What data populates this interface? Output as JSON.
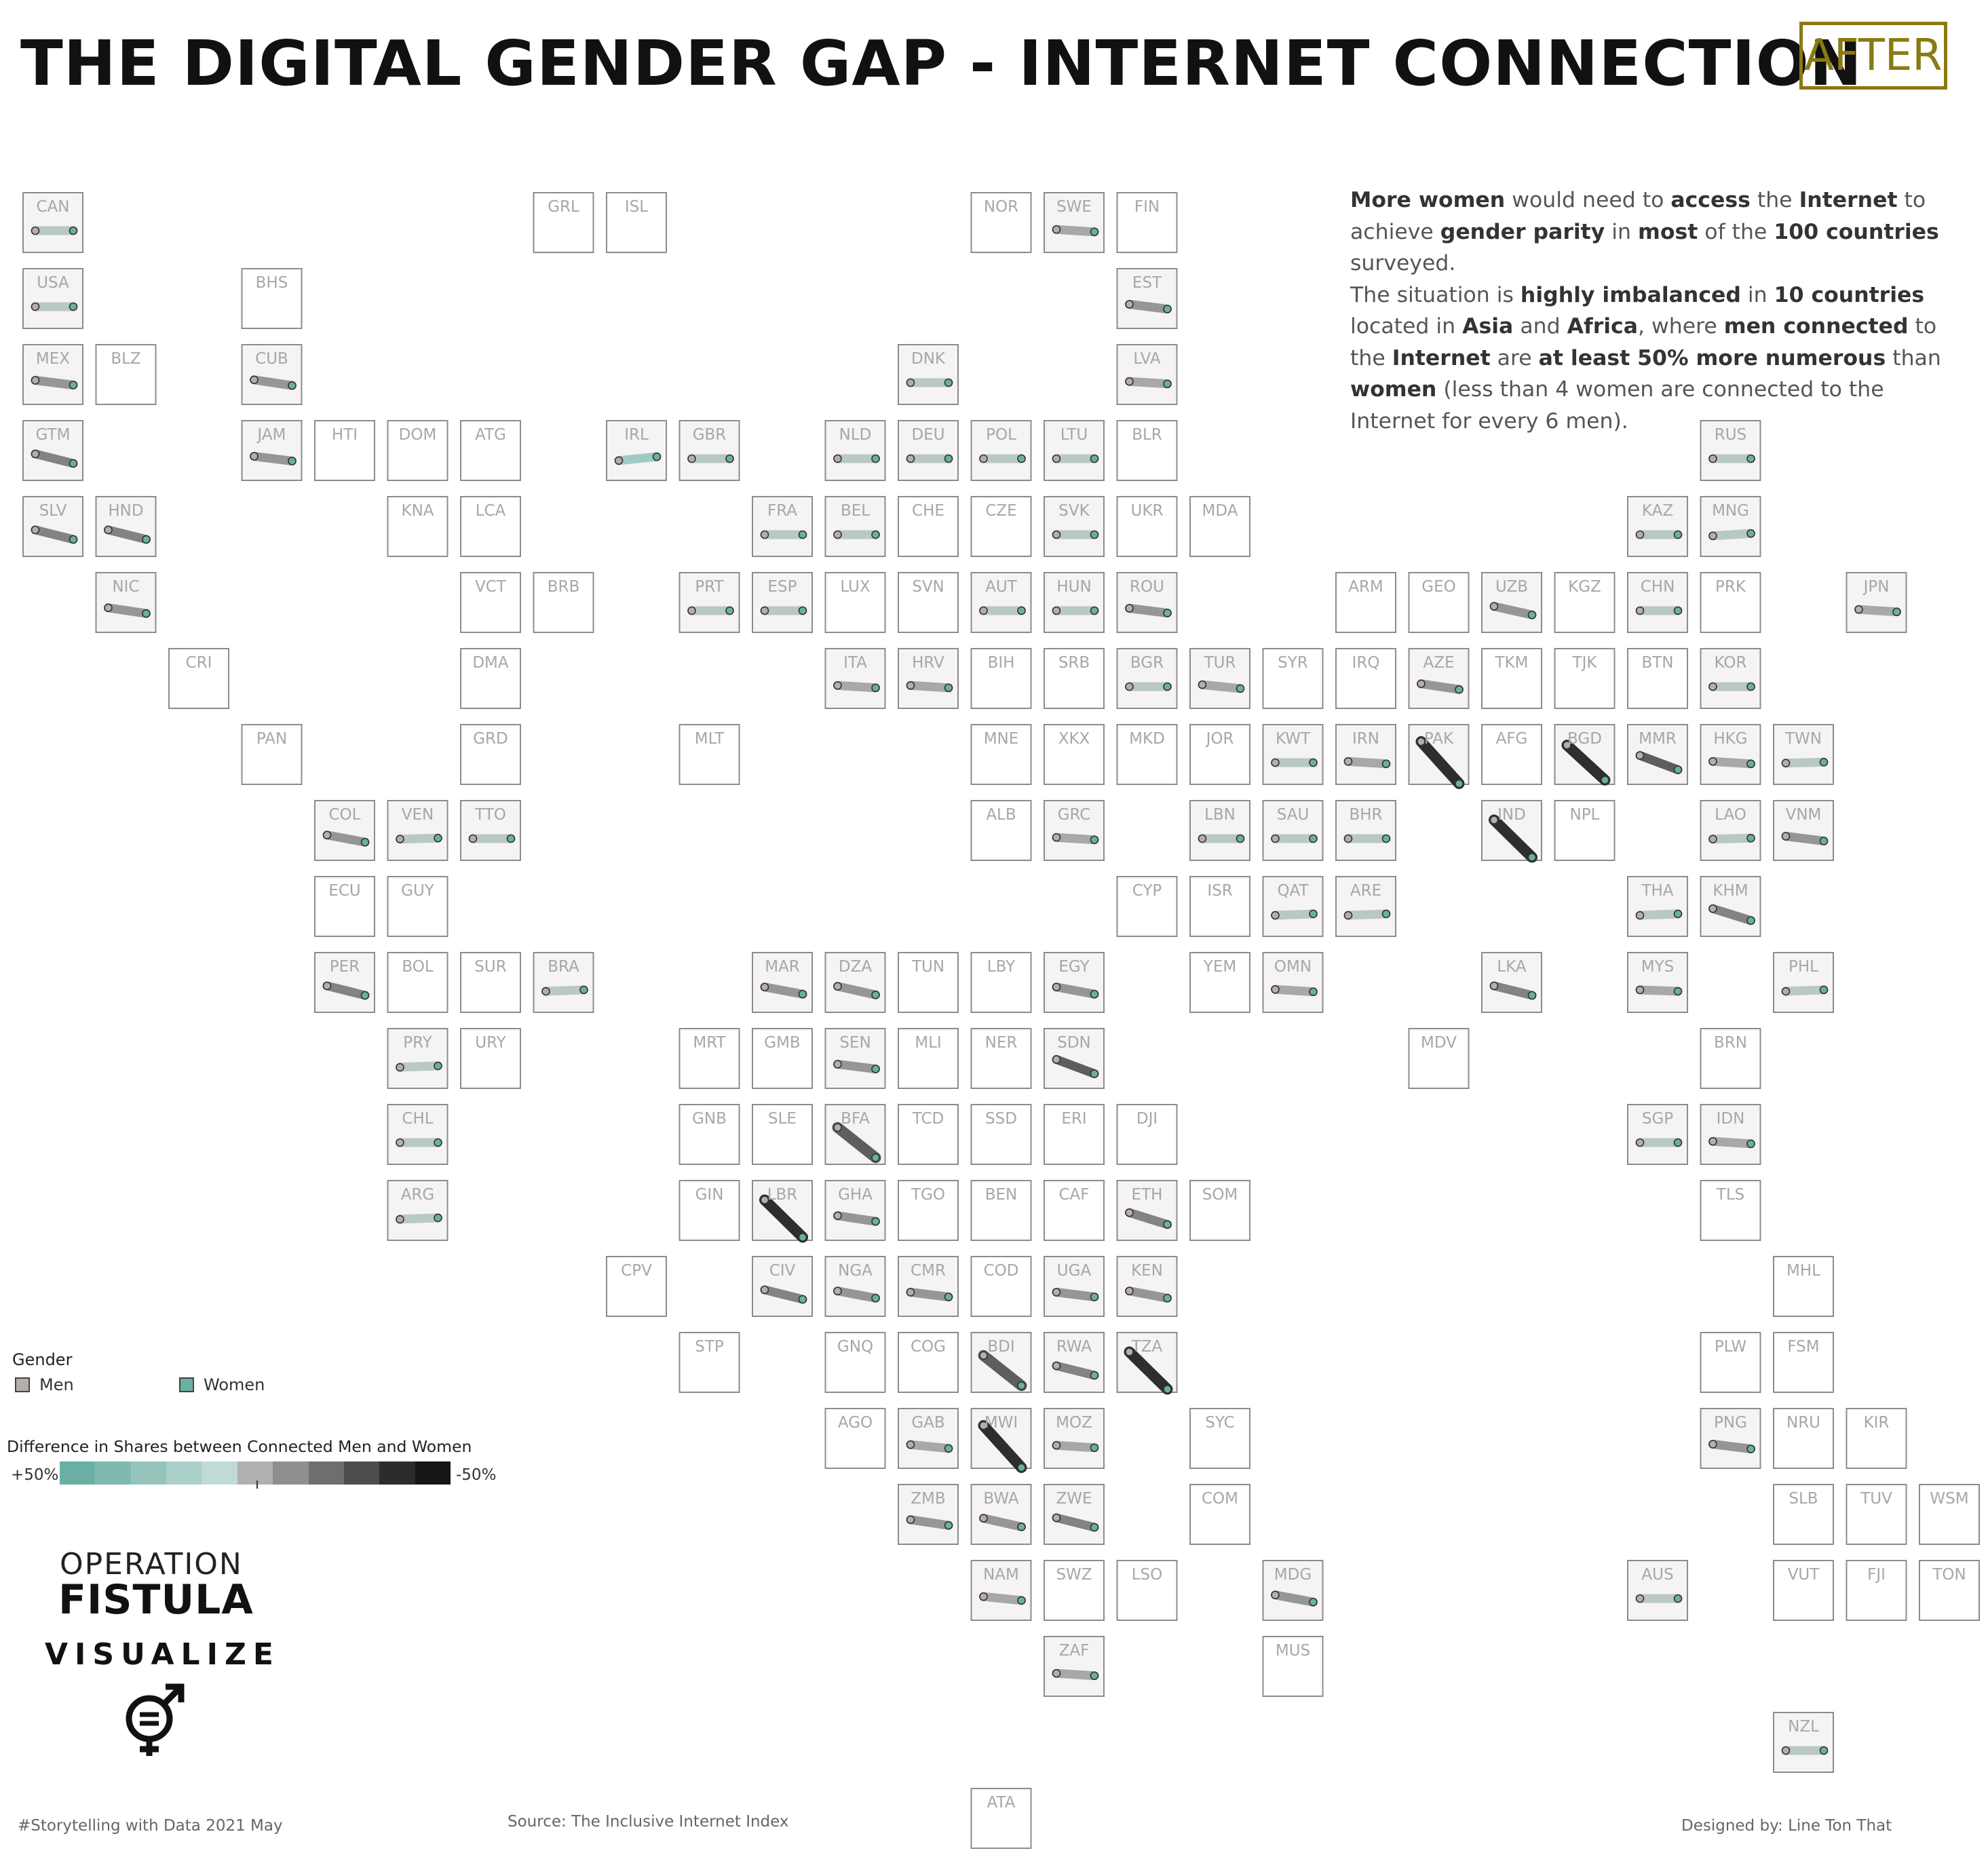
{
  "header": {
    "title": "THE DIGITAL GENDER GAP - INTERNET CONNECTION",
    "badge": "AFTER"
  },
  "annotation": {
    "segments": [
      {
        "t": "More women",
        "b": true
      },
      {
        "t": " would need to ",
        "b": false
      },
      {
        "t": "access",
        "b": true
      },
      {
        "t": " the ",
        "b": false
      },
      {
        "t": "Internet",
        "b": true
      },
      {
        "t": " to achieve ",
        "b": false
      },
      {
        "t": "gender parity",
        "b": true
      },
      {
        "t": " in ",
        "b": false
      },
      {
        "t": "most",
        "b": true
      },
      {
        "t": " of the ",
        "b": false
      },
      {
        "t": "100 countries",
        "b": true
      },
      {
        "t": " surveyed.",
        "b": false
      },
      {
        "br": true
      },
      {
        "t": "The situation is ",
        "b": false
      },
      {
        "t": "highly imbalanced",
        "b": true
      },
      {
        "t": " in ",
        "b": false
      },
      {
        "t": "10 countries",
        "b": true
      },
      {
        "t": " located in ",
        "b": false
      },
      {
        "t": "Asia",
        "b": true
      },
      {
        "t": " and ",
        "b": false
      },
      {
        "t": "Africa",
        "b": true
      },
      {
        "t": ", where ",
        "b": false
      },
      {
        "t": "men connected",
        "b": true
      },
      {
        "t": " to the ",
        "b": false
      },
      {
        "t": "Internet",
        "b": true
      },
      {
        "t": " are ",
        "b": false
      },
      {
        "t": "at least 50% more numerous",
        "b": true
      },
      {
        "t": " than  ",
        "b": false
      },
      {
        "t": "women",
        "b": true
      },
      {
        "t": " (less than 4 women are connected to the Internet for every 6 men).",
        "b": false
      }
    ]
  },
  "legend": {
    "gender_title": "Gender",
    "men_label": "Men",
    "women_label": "Women",
    "men_color": "#b5aeab",
    "women_color": "#6aafa4",
    "diff_title": "Difference in Shares between Connected Men and Women",
    "scale_left": "+50%",
    "scale_right": "-50%",
    "scale_colors": [
      "#6aafa4",
      "#7fb9af",
      "#95c4bc",
      "#abcfc9",
      "#c0dad6",
      "#b0b0b0",
      "#8f8f8f",
      "#6e6e6e",
      "#4d4d4d",
      "#2c2c2c",
      "#151515"
    ]
  },
  "logo": {
    "line1": "OPERATION",
    "line2": "FISTULA",
    "line3": "VISUALIZE",
    "icon": "gender-equality-icon"
  },
  "footer": {
    "left": "#Storytelling with Data 2021 May",
    "source": "Source: The Inclusive Internet Index",
    "credit": "Designed by: Line Ton That"
  },
  "chart_data": {
    "type": "tile-map",
    "encoding": "Each country tile shows a dumbbell from the men share (grey) to the women share (teal); slope and colour encode the difference in shares between connected men and women.",
    "countries": [
      {
        "code": "CAN",
        "col": 0,
        "row": 0,
        "d": 0
      },
      {
        "code": "GRL",
        "col": 7,
        "row": 0
      },
      {
        "code": "ISL",
        "col": 8,
        "row": 0
      },
      {
        "code": "NOR",
        "col": 13,
        "row": 0
      },
      {
        "code": "SWE",
        "col": 14,
        "row": 0,
        "d": 0.05
      },
      {
        "code": "FIN",
        "col": 15,
        "row": 0
      },
      {
        "code": "USA",
        "col": 0,
        "row": 1,
        "d": 0
      },
      {
        "code": "BHS",
        "col": 3,
        "row": 1
      },
      {
        "code": "EST",
        "col": 15,
        "row": 1,
        "d": 0.1
      },
      {
        "code": "MEX",
        "col": 0,
        "row": 2,
        "d": 0.1
      },
      {
        "code": "BLZ",
        "col": 1,
        "row": 2
      },
      {
        "code": "CUB",
        "col": 3,
        "row": 2,
        "d": 0.12
      },
      {
        "code": "DNK",
        "col": 12,
        "row": 2,
        "d": 0
      },
      {
        "code": "LVA",
        "col": 15,
        "row": 2,
        "d": 0.05
      },
      {
        "code": "GTM",
        "col": 0,
        "row": 3,
        "d": 0.2
      },
      {
        "code": "JAM",
        "col": 3,
        "row": 3,
        "d": 0.1
      },
      {
        "code": "HTI",
        "col": 4,
        "row": 3
      },
      {
        "code": "DOM",
        "col": 5,
        "row": 3
      },
      {
        "code": "ATG",
        "col": 6,
        "row": 3
      },
      {
        "code": "IRL",
        "col": 8,
        "row": 3,
        "d": -0.08
      },
      {
        "code": "GBR",
        "col": 9,
        "row": 3,
        "d": 0
      },
      {
        "code": "NLD",
        "col": 11,
        "row": 3,
        "d": 0
      },
      {
        "code": "DEU",
        "col": 12,
        "row": 3,
        "d": 0
      },
      {
        "code": "POL",
        "col": 13,
        "row": 3,
        "d": 0
      },
      {
        "code": "LTU",
        "col": 14,
        "row": 3,
        "d": 0
      },
      {
        "code": "BLR",
        "col": 15,
        "row": 3
      },
      {
        "code": "RUS",
        "col": 23,
        "row": 3,
        "d": 0
      },
      {
        "code": "SLV",
        "col": 0,
        "row": 4,
        "d": 0.2
      },
      {
        "code": "HND",
        "col": 1,
        "row": 4,
        "d": 0.2
      },
      {
        "code": "KNA",
        "col": 5,
        "row": 4
      },
      {
        "code": "LCA",
        "col": 6,
        "row": 4
      },
      {
        "code": "FRA",
        "col": 10,
        "row": 4,
        "d": 0
      },
      {
        "code": "BEL",
        "col": 11,
        "row": 4,
        "d": 0
      },
      {
        "code": "CHE",
        "col": 12,
        "row": 4
      },
      {
        "code": "CZE",
        "col": 13,
        "row": 4
      },
      {
        "code": "SVK",
        "col": 14,
        "row": 4,
        "d": 0
      },
      {
        "code": "UKR",
        "col": 15,
        "row": 4
      },
      {
        "code": "MDA",
        "col": 16,
        "row": 4
      },
      {
        "code": "KAZ",
        "col": 22,
        "row": 4,
        "d": 0
      },
      {
        "code": "MNG",
        "col": 23,
        "row": 4,
        "d": -0.05
      },
      {
        "code": "NIC",
        "col": 1,
        "row": 5,
        "d": 0.12
      },
      {
        "code": "VCT",
        "col": 6,
        "row": 5
      },
      {
        "code": "BRB",
        "col": 7,
        "row": 5
      },
      {
        "code": "PRT",
        "col": 9,
        "row": 5,
        "d": 0
      },
      {
        "code": "ESP",
        "col": 10,
        "row": 5,
        "d": 0
      },
      {
        "code": "LUX",
        "col": 11,
        "row": 5
      },
      {
        "code": "SVN",
        "col": 12,
        "row": 5
      },
      {
        "code": "AUT",
        "col": 13,
        "row": 5,
        "d": 0
      },
      {
        "code": "HUN",
        "col": 14,
        "row": 5,
        "d": 0
      },
      {
        "code": "ROU",
        "col": 15,
        "row": 5,
        "d": 0.1
      },
      {
        "code": "ARM",
        "col": 18,
        "row": 5
      },
      {
        "code": "GEO",
        "col": 19,
        "row": 5
      },
      {
        "code": "UZB",
        "col": 20,
        "row": 5,
        "d": 0.18
      },
      {
        "code": "KGZ",
        "col": 21,
        "row": 5
      },
      {
        "code": "CHN",
        "col": 22,
        "row": 5,
        "d": 0
      },
      {
        "code": "PRK",
        "col": 23,
        "row": 5
      },
      {
        "code": "JPN",
        "col": 25,
        "row": 5,
        "d": 0.05
      },
      {
        "code": "CRI",
        "col": 2,
        "row": 6
      },
      {
        "code": "DMA",
        "col": 6,
        "row": 6
      },
      {
        "code": "ITA",
        "col": 11,
        "row": 6,
        "d": 0.05
      },
      {
        "code": "HRV",
        "col": 12,
        "row": 6,
        "d": 0.05
      },
      {
        "code": "BIH",
        "col": 13,
        "row": 6
      },
      {
        "code": "SRB",
        "col": 14,
        "row": 6
      },
      {
        "code": "BGR",
        "col": 15,
        "row": 6,
        "d": 0
      },
      {
        "code": "TUR",
        "col": 16,
        "row": 6,
        "d": 0.08
      },
      {
        "code": "SYR",
        "col": 17,
        "row": 6
      },
      {
        "code": "IRQ",
        "col": 18,
        "row": 6
      },
      {
        "code": "AZE",
        "col": 19,
        "row": 6,
        "d": 0.12
      },
      {
        "code": "TKM",
        "col": 20,
        "row": 6
      },
      {
        "code": "TJK",
        "col": 21,
        "row": 6
      },
      {
        "code": "BTN",
        "col": 22,
        "row": 6
      },
      {
        "code": "KOR",
        "col": 23,
        "row": 6,
        "d": 0
      },
      {
        "code": "PAN",
        "col": 3,
        "row": 7
      },
      {
        "code": "GRD",
        "col": 6,
        "row": 7
      },
      {
        "code": "MLT",
        "col": 9,
        "row": 7
      },
      {
        "code": "MNE",
        "col": 13,
        "row": 7
      },
      {
        "code": "XKX",
        "col": 14,
        "row": 7
      },
      {
        "code": "MKD",
        "col": 15,
        "row": 7
      },
      {
        "code": "JOR",
        "col": 16,
        "row": 7
      },
      {
        "code": "KWT",
        "col": 17,
        "row": 7,
        "d": 0
      },
      {
        "code": "IRN",
        "col": 18,
        "row": 7,
        "d": 0.05
      },
      {
        "code": "PAK",
        "col": 19,
        "row": 7,
        "d": 0.6
      },
      {
        "code": "AFG",
        "col": 20,
        "row": 7
      },
      {
        "code": "BGD",
        "col": 21,
        "row": 7,
        "d": 0.45
      },
      {
        "code": "MMR",
        "col": 22,
        "row": 7,
        "d": 0.3
      },
      {
        "code": "HKG",
        "col": 23,
        "row": 7,
        "d": 0.05
      },
      {
        "code": "TWN",
        "col": 24,
        "row": 7,
        "d": -0.02
      },
      {
        "code": "COL",
        "col": 4,
        "row": 8,
        "d": 0.15
      },
      {
        "code": "VEN",
        "col": 5,
        "row": 8,
        "d": -0.02
      },
      {
        "code": "TTO",
        "col": 6,
        "row": 8,
        "d": 0
      },
      {
        "code": "ALB",
        "col": 13,
        "row": 8
      },
      {
        "code": "GRC",
        "col": 14,
        "row": 8,
        "d": 0.05
      },
      {
        "code": "LBN",
        "col": 16,
        "row": 8,
        "d": 0
      },
      {
        "code": "SAU",
        "col": 17,
        "row": 8,
        "d": 0
      },
      {
        "code": "BHR",
        "col": 18,
        "row": 8,
        "d": 0
      },
      {
        "code": "IND",
        "col": 20,
        "row": 8,
        "d": 0.5
      },
      {
        "code": "NPL",
        "col": 21,
        "row": 8
      },
      {
        "code": "LAO",
        "col": 23,
        "row": 8,
        "d": -0.02
      },
      {
        "code": "VNM",
        "col": 24,
        "row": 8,
        "d": 0.1
      },
      {
        "code": "ECU",
        "col": 4,
        "row": 9
      },
      {
        "code": "GUY",
        "col": 5,
        "row": 9
      },
      {
        "code": "CYP",
        "col": 15,
        "row": 9
      },
      {
        "code": "ISR",
        "col": 16,
        "row": 9
      },
      {
        "code": "QAT",
        "col": 17,
        "row": 9,
        "d": -0.03
      },
      {
        "code": "ARE",
        "col": 18,
        "row": 9,
        "d": -0.03
      },
      {
        "code": "THA",
        "col": 22,
        "row": 9,
        "d": -0.03
      },
      {
        "code": "KHM",
        "col": 23,
        "row": 9,
        "d": 0.25
      },
      {
        "code": "PER",
        "col": 4,
        "row": 10,
        "d": 0.2
      },
      {
        "code": "BOL",
        "col": 5,
        "row": 10
      },
      {
        "code": "SUR",
        "col": 6,
        "row": 10
      },
      {
        "code": "BRA",
        "col": 7,
        "row": 10,
        "d": -0.03
      },
      {
        "code": "MAR",
        "col": 10,
        "row": 10,
        "d": 0.15
      },
      {
        "code": "DZA",
        "col": 11,
        "row": 10,
        "d": 0.18
      },
      {
        "code": "TUN",
        "col": 12,
        "row": 10
      },
      {
        "code": "LBY",
        "col": 13,
        "row": 10
      },
      {
        "code": "EGY",
        "col": 14,
        "row": 10,
        "d": 0.15
      },
      {
        "code": "YEM",
        "col": 16,
        "row": 10
      },
      {
        "code": "OMN",
        "col": 17,
        "row": 10,
        "d": 0.05
      },
      {
        "code": "LKA",
        "col": 20,
        "row": 10,
        "d": 0.2
      },
      {
        "code": "MYS",
        "col": 22,
        "row": 10,
        "d": 0.03
      },
      {
        "code": "PHL",
        "col": 24,
        "row": 10,
        "d": -0.03
      },
      {
        "code": "PRY",
        "col": 5,
        "row": 11,
        "d": -0.03
      },
      {
        "code": "URY",
        "col": 6,
        "row": 11
      },
      {
        "code": "MRT",
        "col": 9,
        "row": 11
      },
      {
        "code": "GMB",
        "col": 10,
        "row": 11
      },
      {
        "code": "SEN",
        "col": 11,
        "row": 11,
        "d": 0.1
      },
      {
        "code": "MLI",
        "col": 12,
        "row": 11
      },
      {
        "code": "NER",
        "col": 13,
        "row": 11
      },
      {
        "code": "SDN",
        "col": 14,
        "row": 11,
        "d": 0.3
      },
      {
        "code": "MDV",
        "col": 19,
        "row": 11
      },
      {
        "code": "BRN",
        "col": 23,
        "row": 11
      },
      {
        "code": "CHL",
        "col": 5,
        "row": 12,
        "d": 0
      },
      {
        "code": "GNB",
        "col": 9,
        "row": 12
      },
      {
        "code": "SLE",
        "col": 10,
        "row": 12
      },
      {
        "code": "BFA",
        "col": 11,
        "row": 12,
        "d": 0.35
      },
      {
        "code": "TCD",
        "col": 12,
        "row": 12
      },
      {
        "code": "SSD",
        "col": 13,
        "row": 12
      },
      {
        "code": "ERI",
        "col": 14,
        "row": 12
      },
      {
        "code": "DJI",
        "col": 15,
        "row": 12
      },
      {
        "code": "SGP",
        "col": 22,
        "row": 12,
        "d": 0
      },
      {
        "code": "IDN",
        "col": 23,
        "row": 12,
        "d": 0.05
      },
      {
        "code": "ARG",
        "col": 5,
        "row": 13,
        "d": -0.03
      },
      {
        "code": "GIN",
        "col": 9,
        "row": 13
      },
      {
        "code": "LBR",
        "col": 10,
        "row": 13,
        "d": 0.5
      },
      {
        "code": "GHA",
        "col": 11,
        "row": 13,
        "d": 0.12
      },
      {
        "code": "TGO",
        "col": 12,
        "row": 13
      },
      {
        "code": "BEN",
        "col": 13,
        "row": 13
      },
      {
        "code": "CAF",
        "col": 14,
        "row": 13
      },
      {
        "code": "ETH",
        "col": 15,
        "row": 13,
        "d": 0.25
      },
      {
        "code": "SOM",
        "col": 16,
        "row": 13
      },
      {
        "code": "TLS",
        "col": 23,
        "row": 13
      },
      {
        "code": "CPV",
        "col": 8,
        "row": 14
      },
      {
        "code": "CIV",
        "col": 10,
        "row": 14,
        "d": 0.2
      },
      {
        "code": "NGA",
        "col": 11,
        "row": 14,
        "d": 0.15
      },
      {
        "code": "CMR",
        "col": 12,
        "row": 14,
        "d": 0.1
      },
      {
        "code": "COD",
        "col": 13,
        "row": 14
      },
      {
        "code": "UGA",
        "col": 14,
        "row": 14,
        "d": 0.1
      },
      {
        "code": "KEN",
        "col": 15,
        "row": 14,
        "d": 0.15
      },
      {
        "code": "MHL",
        "col": 24,
        "row": 14
      },
      {
        "code": "STP",
        "col": 9,
        "row": 15
      },
      {
        "code": "GNQ",
        "col": 11,
        "row": 15
      },
      {
        "code": "COG",
        "col": 12,
        "row": 15
      },
      {
        "code": "BDI",
        "col": 13,
        "row": 15,
        "d": 0.35
      },
      {
        "code": "RWA",
        "col": 14,
        "row": 15,
        "d": 0.2
      },
      {
        "code": "TZA",
        "col": 15,
        "row": 15,
        "d": 0.5
      },
      {
        "code": "PLW",
        "col": 23,
        "row": 15
      },
      {
        "code": "FSM",
        "col": 24,
        "row": 15
      },
      {
        "code": "AGO",
        "col": 11,
        "row": 16
      },
      {
        "code": "GAB",
        "col": 12,
        "row": 16,
        "d": 0.08
      },
      {
        "code": "MWI",
        "col": 13,
        "row": 16,
        "d": 0.6
      },
      {
        "code": "MOZ",
        "col": 14,
        "row": 16,
        "d": 0.05
      },
      {
        "code": "SYC",
        "col": 16,
        "row": 16
      },
      {
        "code": "PNG",
        "col": 23,
        "row": 16,
        "d": 0.1
      },
      {
        "code": "NRU",
        "col": 24,
        "row": 16
      },
      {
        "code": "KIR",
        "col": 25,
        "row": 16
      },
      {
        "code": "ZMB",
        "col": 12,
        "row": 17,
        "d": 0.12
      },
      {
        "code": "BWA",
        "col": 13,
        "row": 17,
        "d": 0.18
      },
      {
        "code": "ZWE",
        "col": 14,
        "row": 17,
        "d": 0.2
      },
      {
        "code": "COM",
        "col": 16,
        "row": 17
      },
      {
        "code": "SLB",
        "col": 24,
        "row": 17
      },
      {
        "code": "TUV",
        "col": 25,
        "row": 17
      },
      {
        "code": "WSM",
        "col": 26,
        "row": 17
      },
      {
        "code": "NAM",
        "col": 13,
        "row": 18,
        "d": 0.08
      },
      {
        "code": "SWZ",
        "col": 14,
        "row": 18
      },
      {
        "code": "LSO",
        "col": 15,
        "row": 18
      },
      {
        "code": "MDG",
        "col": 17,
        "row": 18,
        "d": 0.15
      },
      {
        "code": "AUS",
        "col": 22,
        "row": 18,
        "d": 0
      },
      {
        "code": "VUT",
        "col": 24,
        "row": 18
      },
      {
        "code": "FJI",
        "col": 25,
        "row": 18
      },
      {
        "code": "TON",
        "col": 26,
        "row": 18
      },
      {
        "code": "ZAF",
        "col": 14,
        "row": 19,
        "d": 0.05
      },
      {
        "code": "MUS",
        "col": 17,
        "row": 19
      },
      {
        "code": "NZL",
        "col": 24,
        "row": 20,
        "d": 0
      },
      {
        "code": "ATA",
        "col": 13,
        "row": 21
      }
    ]
  }
}
